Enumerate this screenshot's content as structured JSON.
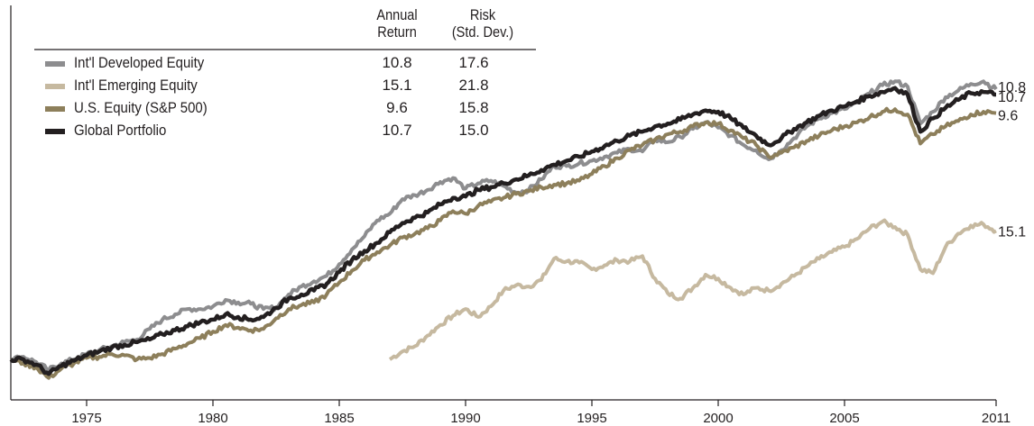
{
  "table_header": {
    "return_line1": "Annual",
    "return_line2": "Return",
    "risk_line1": "Risk",
    "risk_line2": "(Std. Dev.)"
  },
  "legend": [
    {
      "label": "Int'l Developed Equity",
      "annual_return": "10.8",
      "risk": "17.6",
      "color": "#8d8d8f"
    },
    {
      "label": "Int'l Emerging Equity",
      "annual_return": "15.1",
      "risk": "21.8",
      "color": "#c6b9a0"
    },
    {
      "label": "U.S. Equity (S&P 500)",
      "annual_return": "9.6",
      "risk": "15.8",
      "color": "#8d7f5b"
    },
    {
      "label": "Global Portfolio",
      "annual_return": "10.7",
      "risk": "15.0",
      "color": "#231f20"
    }
  ],
  "chart_data": {
    "type": "line",
    "title": "",
    "xlabel": "",
    "ylabel": "",
    "x_ticks": [
      "1975",
      "1980",
      "1985",
      "1990",
      "1995",
      "2000",
      "2005",
      "2011"
    ],
    "xlim": [
      1972,
      2011
    ],
    "y_axis_shown": false,
    "grid": false,
    "legend_position": "top-left",
    "series": [
      {
        "name": "Int'l Emerging Equity",
        "color": "#c6b9a0",
        "end_label": "15.1",
        "points": [
          [
            1987.0,
            0.0
          ],
          [
            1987.5,
            0.6
          ],
          [
            1988.0,
            1.0
          ],
          [
            1988.5,
            1.8
          ],
          [
            1989.0,
            2.6
          ],
          [
            1989.5,
            3.3
          ],
          [
            1990.0,
            3.8
          ],
          [
            1990.5,
            3.2
          ],
          [
            1991.0,
            4.0
          ],
          [
            1991.5,
            5.2
          ],
          [
            1992.0,
            5.6
          ],
          [
            1992.5,
            5.5
          ],
          [
            1993.0,
            6.0
          ],
          [
            1993.5,
            7.6
          ],
          [
            1994.0,
            7.4
          ],
          [
            1994.5,
            7.3
          ],
          [
            1995.0,
            6.8
          ],
          [
            1995.5,
            7.1
          ],
          [
            1996.0,
            7.5
          ],
          [
            1996.5,
            7.4
          ],
          [
            1997.0,
            7.8
          ],
          [
            1997.5,
            6.1
          ],
          [
            1998.0,
            5.0
          ],
          [
            1998.5,
            4.6
          ],
          [
            1999.0,
            5.4
          ],
          [
            1999.5,
            6.4
          ],
          [
            2000.0,
            6.1
          ],
          [
            2000.5,
            5.4
          ],
          [
            2001.0,
            4.9
          ],
          [
            2001.5,
            5.4
          ],
          [
            2002.0,
            5.2
          ],
          [
            2002.5,
            5.7
          ],
          [
            2003.0,
            6.3
          ],
          [
            2003.5,
            7.0
          ],
          [
            2004.0,
            7.6
          ],
          [
            2004.5,
            8.1
          ],
          [
            2005.0,
            8.5
          ],
          [
            2005.5,
            9.1
          ],
          [
            2006.0,
            9.9
          ],
          [
            2006.5,
            10.4
          ],
          [
            2007.0,
            10.0
          ],
          [
            2007.5,
            9.4
          ],
          [
            2008.0,
            6.8
          ],
          [
            2008.5,
            6.5
          ],
          [
            2009.0,
            8.5
          ],
          [
            2009.5,
            9.5
          ],
          [
            2010.0,
            10.1
          ],
          [
            2010.5,
            10.2
          ],
          [
            2011.0,
            9.7
          ]
        ]
      },
      {
        "name": "Int'l Developed Equity",
        "color": "#8d8d8f",
        "end_label": "10.8",
        "points": [
          [
            1972.0,
            0.0
          ],
          [
            1972.5,
            0.2
          ],
          [
            1973.0,
            -0.2
          ],
          [
            1973.5,
            -0.8
          ],
          [
            1974.0,
            -0.3
          ],
          [
            1974.5,
            0.0
          ],
          [
            1975.0,
            0.4
          ],
          [
            1975.5,
            0.7
          ],
          [
            1976.0,
            1.0
          ],
          [
            1976.5,
            1.3
          ],
          [
            1977.0,
            1.5
          ],
          [
            1977.5,
            2.3
          ],
          [
            1978.0,
            3.0
          ],
          [
            1978.5,
            3.4
          ],
          [
            1979.0,
            3.8
          ],
          [
            1979.5,
            3.8
          ],
          [
            1980.0,
            4.0
          ],
          [
            1980.5,
            4.5
          ],
          [
            1981.0,
            4.3
          ],
          [
            1981.5,
            4.2
          ],
          [
            1982.0,
            3.8
          ],
          [
            1982.5,
            3.9
          ],
          [
            1983.0,
            4.9
          ],
          [
            1983.5,
            5.5
          ],
          [
            1984.0,
            5.9
          ],
          [
            1984.5,
            6.3
          ],
          [
            1985.0,
            7.2
          ],
          [
            1985.5,
            8.3
          ],
          [
            1986.0,
            9.3
          ],
          [
            1986.5,
            10.5
          ],
          [
            1987.0,
            11.0
          ],
          [
            1987.5,
            12.1
          ],
          [
            1988.0,
            12.4
          ],
          [
            1988.5,
            12.8
          ],
          [
            1989.0,
            13.4
          ],
          [
            1989.5,
            13.7
          ],
          [
            1990.0,
            12.9
          ],
          [
            1990.5,
            13.3
          ],
          [
            1991.0,
            13.5
          ],
          [
            1991.5,
            13.1
          ],
          [
            1992.0,
            12.6
          ],
          [
            1992.5,
            12.8
          ],
          [
            1993.0,
            13.6
          ],
          [
            1993.5,
            14.6
          ],
          [
            1994.0,
            14.6
          ],
          [
            1994.5,
            14.8
          ],
          [
            1995.0,
            15.0
          ],
          [
            1995.5,
            15.3
          ],
          [
            1996.0,
            15.6
          ],
          [
            1996.5,
            15.9
          ],
          [
            1997.0,
            15.7
          ],
          [
            1997.5,
            16.6
          ],
          [
            1998.0,
            16.4
          ],
          [
            1998.5,
            16.8
          ],
          [
            1999.0,
            17.4
          ],
          [
            1999.5,
            17.9
          ],
          [
            2000.0,
            17.5
          ],
          [
            2000.5,
            16.9
          ],
          [
            2001.0,
            16.2
          ],
          [
            2001.5,
            15.8
          ],
          [
            2002.0,
            15.1
          ],
          [
            2002.5,
            15.8
          ],
          [
            2003.0,
            16.7
          ],
          [
            2003.5,
            17.6
          ],
          [
            2004.0,
            18.2
          ],
          [
            2004.5,
            18.6
          ],
          [
            2005.0,
            18.9
          ],
          [
            2005.5,
            19.4
          ],
          [
            2006.0,
            20.1
          ],
          [
            2006.5,
            20.7
          ],
          [
            2007.0,
            21.0
          ],
          [
            2007.5,
            20.6
          ],
          [
            2008.0,
            17.8
          ],
          [
            2008.5,
            18.7
          ],
          [
            2009.0,
            19.8
          ],
          [
            2009.5,
            20.3
          ],
          [
            2010.0,
            20.8
          ],
          [
            2010.5,
            21.0
          ],
          [
            2011.0,
            20.4
          ]
        ]
      },
      {
        "name": "U.S. Equity (S&P 500)",
        "color": "#8d7f5b",
        "end_label": "9.6",
        "points": [
          [
            1972.0,
            0.0
          ],
          [
            1972.5,
            -0.3
          ],
          [
            1973.0,
            -0.6
          ],
          [
            1973.5,
            -1.4
          ],
          [
            1974.0,
            -0.7
          ],
          [
            1974.5,
            -0.3
          ],
          [
            1975.0,
            0.1
          ],
          [
            1975.5,
            0.2
          ],
          [
            1976.0,
            0.4
          ],
          [
            1976.5,
            0.3
          ],
          [
            1977.0,
            0.0
          ],
          [
            1977.5,
            0.1
          ],
          [
            1978.0,
            0.4
          ],
          [
            1978.5,
            0.8
          ],
          [
            1979.0,
            1.2
          ],
          [
            1979.5,
            1.6
          ],
          [
            1980.0,
            2.1
          ],
          [
            1980.5,
            2.6
          ],
          [
            1981.0,
            2.4
          ],
          [
            1981.5,
            2.2
          ],
          [
            1982.0,
            2.3
          ],
          [
            1982.5,
            3.1
          ],
          [
            1983.0,
            3.8
          ],
          [
            1983.5,
            4.1
          ],
          [
            1984.0,
            4.3
          ],
          [
            1984.5,
            4.9
          ],
          [
            1985.0,
            5.8
          ],
          [
            1985.5,
            6.7
          ],
          [
            1986.0,
            7.5
          ],
          [
            1986.5,
            8.1
          ],
          [
            1987.0,
            8.6
          ],
          [
            1987.5,
            9.2
          ],
          [
            1988.0,
            9.5
          ],
          [
            1988.5,
            9.9
          ],
          [
            1989.0,
            10.5
          ],
          [
            1989.5,
            11.2
          ],
          [
            1990.0,
            11.0
          ],
          [
            1990.5,
            11.6
          ],
          [
            1991.0,
            11.9
          ],
          [
            1991.5,
            12.2
          ],
          [
            1992.0,
            12.5
          ],
          [
            1992.5,
            12.7
          ],
          [
            1993.0,
            13.0
          ],
          [
            1993.5,
            13.2
          ],
          [
            1994.0,
            13.3
          ],
          [
            1994.5,
            13.5
          ],
          [
            1995.0,
            14.0
          ],
          [
            1995.5,
            14.6
          ],
          [
            1996.0,
            15.2
          ],
          [
            1996.5,
            15.8
          ],
          [
            1997.0,
            16.2
          ],
          [
            1997.5,
            16.6
          ],
          [
            1998.0,
            17.0
          ],
          [
            1998.5,
            17.2
          ],
          [
            1999.0,
            17.6
          ],
          [
            1999.5,
            17.9
          ],
          [
            2000.0,
            17.8
          ],
          [
            2000.5,
            17.3
          ],
          [
            2001.0,
            16.7
          ],
          [
            2001.5,
            16.2
          ],
          [
            2002.0,
            15.3
          ],
          [
            2002.5,
            15.6
          ],
          [
            2003.0,
            16.0
          ],
          [
            2003.5,
            16.5
          ],
          [
            2004.0,
            16.9
          ],
          [
            2004.5,
            17.3
          ],
          [
            2005.0,
            17.6
          ],
          [
            2005.5,
            17.9
          ],
          [
            2006.0,
            18.3
          ],
          [
            2006.5,
            18.7
          ],
          [
            2007.0,
            18.9
          ],
          [
            2007.5,
            18.5
          ],
          [
            2008.0,
            16.3
          ],
          [
            2008.5,
            17.0
          ],
          [
            2009.0,
            17.6
          ],
          [
            2009.5,
            18.0
          ],
          [
            2010.0,
            18.5
          ],
          [
            2010.5,
            18.7
          ],
          [
            2011.0,
            18.6
          ]
        ]
      },
      {
        "name": "Global Portfolio",
        "color": "#231f20",
        "end_label": "10.7",
        "points": [
          [
            1972.0,
            0.0
          ],
          [
            1972.5,
            0.0
          ],
          [
            1973.0,
            -0.4
          ],
          [
            1973.5,
            -1.1
          ],
          [
            1974.0,
            -0.5
          ],
          [
            1974.5,
            -0.1
          ],
          [
            1975.0,
            0.3
          ],
          [
            1975.5,
            0.6
          ],
          [
            1976.0,
            0.9
          ],
          [
            1976.5,
            1.1
          ],
          [
            1977.0,
            1.3
          ],
          [
            1977.5,
            1.5
          ],
          [
            1978.0,
            1.9
          ],
          [
            1978.5,
            2.2
          ],
          [
            1979.0,
            2.5
          ],
          [
            1979.5,
            2.8
          ],
          [
            1980.0,
            3.0
          ],
          [
            1980.5,
            3.4
          ],
          [
            1981.0,
            3.2
          ],
          [
            1981.5,
            3.0
          ],
          [
            1982.0,
            3.2
          ],
          [
            1982.5,
            3.9
          ],
          [
            1983.0,
            4.6
          ],
          [
            1983.5,
            4.9
          ],
          [
            1984.0,
            5.2
          ],
          [
            1984.5,
            5.7
          ],
          [
            1985.0,
            6.6
          ],
          [
            1985.5,
            7.5
          ],
          [
            1986.0,
            8.2
          ],
          [
            1986.5,
            8.8
          ],
          [
            1987.0,
            9.6
          ],
          [
            1987.5,
            10.3
          ],
          [
            1988.0,
            10.7
          ],
          [
            1988.5,
            11.1
          ],
          [
            1989.0,
            11.7
          ],
          [
            1989.5,
            12.2
          ],
          [
            1990.0,
            12.3
          ],
          [
            1990.5,
            12.8
          ],
          [
            1991.0,
            13.0
          ],
          [
            1991.5,
            13.3
          ],
          [
            1992.0,
            13.6
          ],
          [
            1992.5,
            13.9
          ],
          [
            1993.0,
            14.3
          ],
          [
            1993.5,
            14.7
          ],
          [
            1994.0,
            15.0
          ],
          [
            1994.5,
            15.3
          ],
          [
            1995.0,
            15.7
          ],
          [
            1995.5,
            16.1
          ],
          [
            1996.0,
            16.5
          ],
          [
            1996.5,
            16.9
          ],
          [
            1997.0,
            17.2
          ],
          [
            1997.5,
            17.6
          ],
          [
            1998.0,
            17.8
          ],
          [
            1998.5,
            18.1
          ],
          [
            1999.0,
            18.5
          ],
          [
            1999.5,
            18.8
          ],
          [
            2000.0,
            18.7
          ],
          [
            2000.5,
            18.2
          ],
          [
            2001.0,
            17.5
          ],
          [
            2001.5,
            16.9
          ],
          [
            2002.0,
            16.2
          ],
          [
            2002.5,
            16.7
          ],
          [
            2003.0,
            17.4
          ],
          [
            2003.5,
            17.9
          ],
          [
            2004.0,
            18.4
          ],
          [
            2004.5,
            18.8
          ],
          [
            2005.0,
            19.1
          ],
          [
            2005.5,
            19.5
          ],
          [
            2006.0,
            19.9
          ],
          [
            2006.5,
            20.2
          ],
          [
            2007.0,
            20.5
          ],
          [
            2007.5,
            20.0
          ],
          [
            2008.0,
            17.2
          ],
          [
            2008.5,
            18.2
          ],
          [
            2009.0,
            19.0
          ],
          [
            2009.5,
            19.6
          ],
          [
            2010.0,
            20.1
          ],
          [
            2010.5,
            20.2
          ],
          [
            2011.0,
            20.0
          ]
        ]
      }
    ]
  }
}
